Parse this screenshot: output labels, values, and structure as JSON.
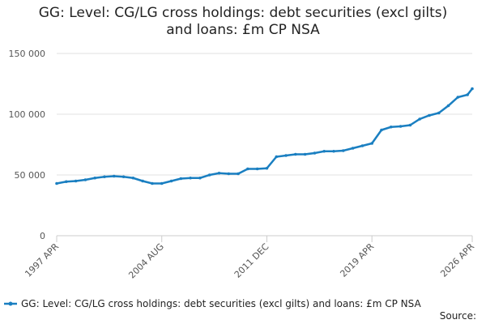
{
  "chart_data": {
    "type": "line",
    "title": "GG: Level: CG/LG cross holdings: debt securities (excl gilts) and loans: £m CP NSA",
    "source": "Source:",
    "x": [
      "1997 APR",
      "1997 DEC",
      "1998 AUG",
      "1999 APR",
      "1999 DEC",
      "2000 AUG",
      "2001 APR",
      "2001 DEC",
      "2002 AUG",
      "2003 APR",
      "2003 DEC",
      "2004 AUG",
      "2005 APR",
      "2005 DEC",
      "2006 AUG",
      "2007 APR",
      "2007 DEC",
      "2008 AUG",
      "2009 APR",
      "2009 DEC",
      "2010 AUG",
      "2011 APR",
      "2011 DEC",
      "2012 AUG",
      "2013 APR",
      "2013 DEC",
      "2014 AUG",
      "2015 APR",
      "2015 DEC",
      "2016 AUG",
      "2017 APR",
      "2017 DEC",
      "2018 AUG",
      "2019 APR",
      "2019 DEC",
      "2020 AUG",
      "2021 APR",
      "2021 DEC",
      "2022 AUG",
      "2023 APR",
      "2023 DEC",
      "2024 AUG",
      "2025 APR",
      "2025 DEC",
      "2026 APR"
    ],
    "series": [
      {
        "name": "GG: Level: CG/LG cross holdings: debt securities (excl gilts) and loans: £m CP NSA",
        "color": "#1a7fc1",
        "values": [
          43000,
          44500,
          45000,
          46000,
          47500,
          48500,
          49000,
          48500,
          47500,
          45000,
          43000,
          43000,
          45000,
          47000,
          47500,
          47500,
          50000,
          51500,
          51000,
          51000,
          55000,
          55000,
          55500,
          65000,
          66000,
          67000,
          67000,
          68000,
          69500,
          69500,
          70000,
          72000,
          74000,
          76000,
          87000,
          89500,
          90000,
          91000,
          96000,
          99000,
          101000,
          107000,
          114000,
          116000,
          121000
        ]
      }
    ],
    "xlim": [
      "1997 APR",
      "2026 APR"
    ],
    "xticks": [
      "1997 APR",
      "2004 AUG",
      "2011 DEC",
      "2019 APR",
      "2026 APR"
    ],
    "ylim": [
      0,
      150000
    ],
    "yticks": [
      0,
      {
        "value": 50000,
        "label": "50 000"
      },
      {
        "value": 100000,
        "label": "100 000"
      },
      {
        "value": 150000,
        "label": "150 000"
      }
    ],
    "grid": true
  }
}
